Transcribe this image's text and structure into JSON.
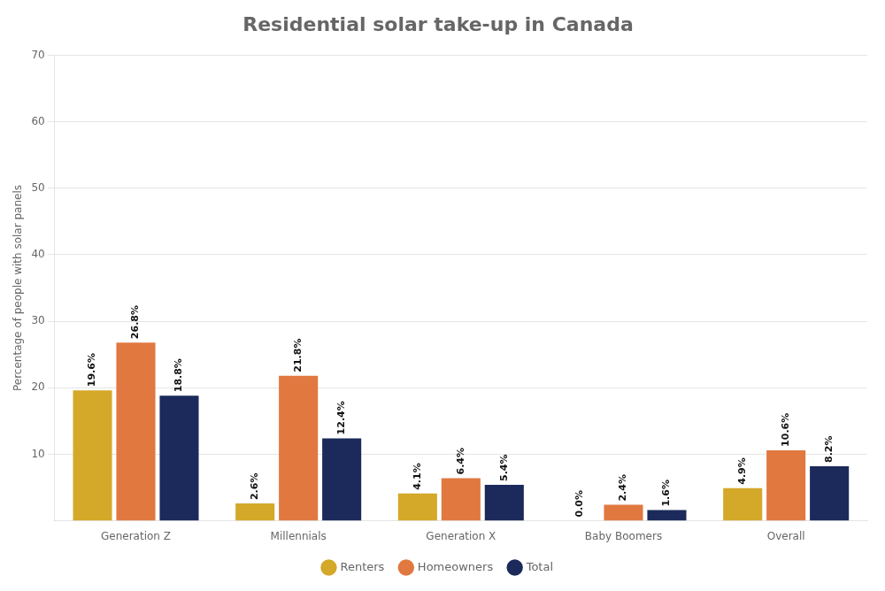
{
  "chart_data": {
    "type": "bar",
    "title": "Residential solar take-up in Canada",
    "ylabel": "Percentage of people with solar panels",
    "categories": [
      "Generation Z",
      "Millennials",
      "Generation X",
      "Baby Boomers",
      "Overall"
    ],
    "series": [
      {
        "name": "Renters",
        "color": "#D4A829",
        "values": [
          19.6,
          2.6,
          4.1,
          0.0,
          4.9
        ],
        "value_labels": [
          "19.6%",
          "2.6%",
          "4.1%",
          "0.0%",
          "4.9%"
        ]
      },
      {
        "name": "Homeowners",
        "color": "#E07840",
        "values": [
          26.8,
          21.8,
          6.4,
          2.4,
          10.6
        ],
        "value_labels": [
          "26.8%",
          "21.8%",
          "6.4%",
          "2.4%",
          "10.6%"
        ]
      },
      {
        "name": "Total",
        "color": "#1B2A5A",
        "values": [
          18.8,
          12.4,
          5.4,
          1.6,
          8.2
        ],
        "value_labels": [
          "18.8%",
          "12.4%",
          "5.4%",
          "1.6%",
          "8.2%"
        ]
      }
    ],
    "ylim": [
      0,
      70
    ],
    "yticks": [
      10,
      20,
      30,
      40,
      50,
      60,
      70
    ],
    "grid": true,
    "legend": "bottom",
    "data_labels": true
  }
}
